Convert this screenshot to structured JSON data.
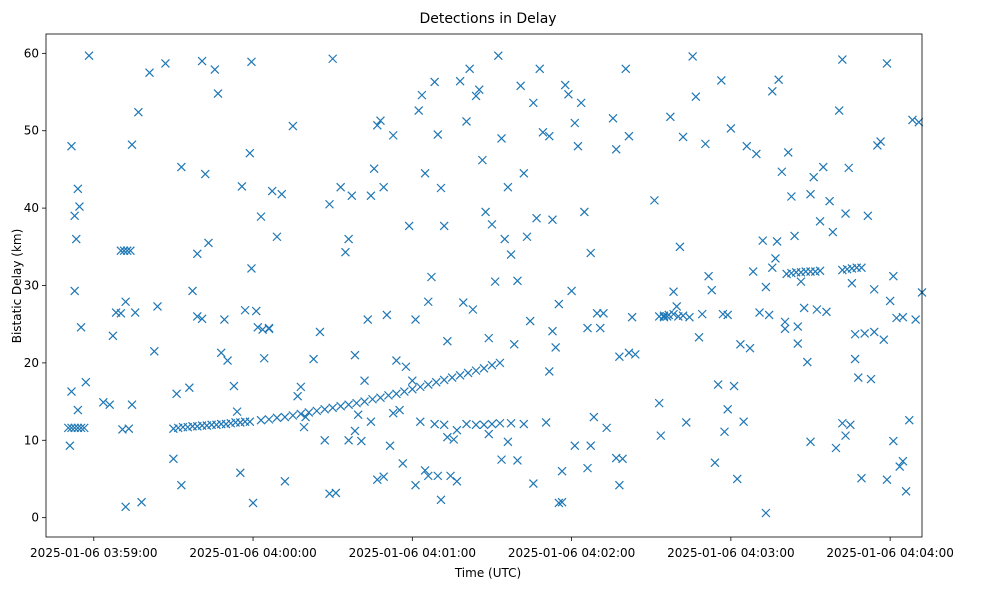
{
  "chart_data": {
    "type": "scatter",
    "title": "Detections in Delay",
    "xlabel": "Time (UTC)",
    "ylabel": "Bistatic Delay (km)",
    "marker": "x",
    "color": "#1f77b4",
    "xlim": [
      -0.3,
      5.2
    ],
    "ylim": [
      -2.5,
      62.5
    ],
    "x_unit": "minutes after 2025-01-06 03:59:00",
    "x_ticks": [
      {
        "value": 0,
        "label": "2025-01-06 03:59:00"
      },
      {
        "value": 1,
        "label": "2025-01-06 04:00:00"
      },
      {
        "value": 2,
        "label": "2025-01-06 04:01:00"
      },
      {
        "value": 3,
        "label": "2025-01-06 04:02:00"
      },
      {
        "value": 4,
        "label": "2025-01-06 04:03:00"
      },
      {
        "value": 5,
        "label": "2025-01-06 04:04:00"
      }
    ],
    "y_ticks": [
      {
        "value": 0,
        "label": "0"
      },
      {
        "value": 10,
        "label": "10"
      },
      {
        "value": 20,
        "label": "20"
      },
      {
        "value": 30,
        "label": "30"
      },
      {
        "value": 40,
        "label": "40"
      },
      {
        "value": 50,
        "label": "50"
      },
      {
        "value": 60,
        "label": "60"
      }
    ],
    "points": [
      [
        -0.16,
        11.6
      ],
      [
        -0.14,
        11.6
      ],
      [
        -0.12,
        11.6
      ],
      [
        -0.1,
        11.6
      ],
      [
        -0.08,
        11.6
      ],
      [
        -0.06,
        11.6
      ],
      [
        0.17,
        34.5
      ],
      [
        0.19,
        34.5
      ],
      [
        0.21,
        34.5
      ],
      [
        0.23,
        34.5
      ],
      [
        0.5,
        11.5
      ],
      [
        0.53,
        11.6
      ],
      [
        0.56,
        11.7
      ],
      [
        0.59,
        11.7
      ],
      [
        0.62,
        11.8
      ],
      [
        0.65,
        11.8
      ],
      [
        0.68,
        11.9
      ],
      [
        0.71,
        11.9
      ],
      [
        0.74,
        12.0
      ],
      [
        0.77,
        12.0
      ],
      [
        0.8,
        12.1
      ],
      [
        0.83,
        12.1
      ],
      [
        0.86,
        12.2
      ],
      [
        0.89,
        12.3
      ],
      [
        0.92,
        12.3
      ],
      [
        0.95,
        12.4
      ],
      [
        0.98,
        12.4
      ],
      [
        1.05,
        12.6
      ],
      [
        1.1,
        12.7
      ],
      [
        1.15,
        12.9
      ],
      [
        1.2,
        13.0
      ],
      [
        1.25,
        13.2
      ],
      [
        1.3,
        13.4
      ],
      [
        1.35,
        13.6
      ],
      [
        1.4,
        13.8
      ],
      [
        1.45,
        14.0
      ],
      [
        1.5,
        14.2
      ],
      [
        1.55,
        14.4
      ],
      [
        1.6,
        14.6
      ],
      [
        1.65,
        14.8
      ],
      [
        1.7,
        15.0
      ],
      [
        1.75,
        15.3
      ],
      [
        1.8,
        15.5
      ],
      [
        1.85,
        15.8
      ],
      [
        1.9,
        16.0
      ],
      [
        1.95,
        16.3
      ],
      [
        2.0,
        16.6
      ],
      [
        2.05,
        16.9
      ],
      [
        2.1,
        17.2
      ],
      [
        2.15,
        17.5
      ],
      [
        2.2,
        17.8
      ],
      [
        2.25,
        18.1
      ],
      [
        2.3,
        18.4
      ],
      [
        2.35,
        18.7
      ],
      [
        2.4,
        19.0
      ],
      [
        2.45,
        19.3
      ],
      [
        2.5,
        19.7
      ],
      [
        2.55,
        20.0
      ],
      [
        2.4,
        12.0
      ],
      [
        2.45,
        12.0
      ],
      [
        2.5,
        12.1
      ],
      [
        2.55,
        12.2
      ],
      [
        4.35,
        31.5
      ],
      [
        4.38,
        31.6
      ],
      [
        4.41,
        31.7
      ],
      [
        4.44,
        31.7
      ],
      [
        4.47,
        31.8
      ],
      [
        4.5,
        31.8
      ],
      [
        4.53,
        31.8
      ],
      [
        4.56,
        31.9
      ],
      [
        4.7,
        32.0
      ],
      [
        4.73,
        32.1
      ],
      [
        4.76,
        32.2
      ],
      [
        4.79,
        32.3
      ],
      [
        4.82,
        32.3
      ],
      [
        3.55,
        26.0
      ],
      [
        3.58,
        26.1
      ],
      [
        3.61,
        26.2
      ],
      [
        3.64,
        26.3
      ],
      [
        3.67,
        26.0
      ],
      [
        3.7,
        26.1
      ],
      [
        3.95,
        26.3
      ],
      [
        3.98,
        26.2
      ],
      [
        -0.14,
        48.0
      ],
      [
        -0.12,
        39.0
      ],
      [
        -0.1,
        42.5
      ],
      [
        -0.09,
        40.2
      ],
      [
        -0.11,
        36.0
      ],
      [
        -0.12,
        29.3
      ],
      [
        -0.08,
        24.6
      ],
      [
        -0.14,
        16.3
      ],
      [
        -0.15,
        9.3
      ],
      [
        -0.1,
        13.9
      ],
      [
        -0.05,
        17.5
      ],
      [
        -0.03,
        59.7
      ],
      [
        0.06,
        14.9
      ],
      [
        0.1,
        14.6
      ],
      [
        0.12,
        23.5
      ],
      [
        0.14,
        26.5
      ],
      [
        0.17,
        26.4
      ],
      [
        0.2,
        27.9
      ],
      [
        0.22,
        11.5
      ],
      [
        0.24,
        48.2
      ],
      [
        0.26,
        26.5
      ],
      [
        0.28,
        52.4
      ],
      [
        0.3,
        2.0
      ],
      [
        0.2,
        1.4
      ],
      [
        0.24,
        14.6
      ],
      [
        0.18,
        11.4
      ],
      [
        0.35,
        57.5
      ],
      [
        0.38,
        21.5
      ],
      [
        0.4,
        27.3
      ],
      [
        0.45,
        58.7
      ],
      [
        0.5,
        7.6
      ],
      [
        0.52,
        16.0
      ],
      [
        0.55,
        4.2
      ],
      [
        0.55,
        45.3
      ],
      [
        0.6,
        16.8
      ],
      [
        0.62,
        29.3
      ],
      [
        0.65,
        34.1
      ],
      [
        0.68,
        59.0
      ],
      [
        0.7,
        44.4
      ],
      [
        0.72,
        35.5
      ],
      [
        0.76,
        57.9
      ],
      [
        0.78,
        54.8
      ],
      [
        0.8,
        21.3
      ],
      [
        0.82,
        25.6
      ],
      [
        0.84,
        20.3
      ],
      [
        0.88,
        17.0
      ],
      [
        0.9,
        13.7
      ],
      [
        0.92,
        5.8
      ],
      [
        0.93,
        42.8
      ],
      [
        0.95,
        26.8
      ],
      [
        0.98,
        47.1
      ],
      [
        0.99,
        32.2
      ],
      [
        1.0,
        1.9
      ],
      [
        1.02,
        26.7
      ],
      [
        1.05,
        38.9
      ],
      [
        1.07,
        20.6
      ],
      [
        1.1,
        24.5
      ],
      [
        1.12,
        42.2
      ],
      [
        1.15,
        36.3
      ],
      [
        1.18,
        41.8
      ],
      [
        0.65,
        26.0
      ],
      [
        0.68,
        25.7
      ],
      [
        0.99,
        58.9
      ],
      [
        1.03,
        24.6
      ],
      [
        1.06,
        24.3
      ],
      [
        1.1,
        24.4
      ],
      [
        1.25,
        50.6
      ],
      [
        1.28,
        15.7
      ],
      [
        1.3,
        16.9
      ],
      [
        1.33,
        13.0
      ],
      [
        1.38,
        20.5
      ],
      [
        1.42,
        24.0
      ],
      [
        1.48,
        40.5
      ],
      [
        1.5,
        59.3
      ],
      [
        1.52,
        3.2
      ],
      [
        1.55,
        42.7
      ],
      [
        1.58,
        34.3
      ],
      [
        1.6,
        36.0
      ],
      [
        1.62,
        41.6
      ],
      [
        1.64,
        21.0
      ],
      [
        1.66,
        13.3
      ],
      [
        1.68,
        9.9
      ],
      [
        1.7,
        17.7
      ],
      [
        1.72,
        25.6
      ],
      [
        1.74,
        41.6
      ],
      [
        1.76,
        45.1
      ],
      [
        1.78,
        50.7
      ],
      [
        1.8,
        51.3
      ],
      [
        1.82,
        42.7
      ],
      [
        1.84,
        26.2
      ],
      [
        1.86,
        9.3
      ],
      [
        1.88,
        49.4
      ],
      [
        1.9,
        20.3
      ],
      [
        1.92,
        13.9
      ],
      [
        1.94,
        7.0
      ],
      [
        1.96,
        19.5
      ],
      [
        1.98,
        37.7
      ],
      [
        2.0,
        17.7
      ],
      [
        2.02,
        25.6
      ],
      [
        2.04,
        52.6
      ],
      [
        2.06,
        54.6
      ],
      [
        2.08,
        44.5
      ],
      [
        2.1,
        27.9
      ],
      [
        2.12,
        31.1
      ],
      [
        2.14,
        56.3
      ],
      [
        2.16,
        49.5
      ],
      [
        2.18,
        42.6
      ],
      [
        2.2,
        37.7
      ],
      [
        2.22,
        22.8
      ],
      [
        2.24,
        5.4
      ],
      [
        2.26,
        10.1
      ],
      [
        2.28,
        11.3
      ],
      [
        2.3,
        56.4
      ],
      [
        2.32,
        27.8
      ],
      [
        2.34,
        51.2
      ],
      [
        2.36,
        58.0
      ],
      [
        2.38,
        26.9
      ],
      [
        2.4,
        54.5
      ],
      [
        2.42,
        55.3
      ],
      [
        2.44,
        46.2
      ],
      [
        2.46,
        39.5
      ],
      [
        2.48,
        23.2
      ],
      [
        2.5,
        37.9
      ],
      [
        2.52,
        30.5
      ],
      [
        2.54,
        59.7
      ],
      [
        2.56,
        49.0
      ],
      [
        2.58,
        36.0
      ],
      [
        2.6,
        42.7
      ],
      [
        2.62,
        34.0
      ],
      [
        2.64,
        22.4
      ],
      [
        2.66,
        30.6
      ],
      [
        2.68,
        55.8
      ],
      [
        2.7,
        44.5
      ],
      [
        2.72,
        36.3
      ],
      [
        2.74,
        25.4
      ],
      [
        2.76,
        53.6
      ],
      [
        2.78,
        38.7
      ],
      [
        2.8,
        58.0
      ],
      [
        2.82,
        49.8
      ],
      [
        2.84,
        12.3
      ],
      [
        2.86,
        49.3
      ],
      [
        2.88,
        38.5
      ],
      [
        2.9,
        22.0
      ],
      [
        2.92,
        27.6
      ],
      [
        2.94,
        2.0
      ],
      [
        2.96,
        55.9
      ],
      [
        2.98,
        54.7
      ],
      [
        3.0,
        29.3
      ],
      [
        3.02,
        51.0
      ],
      [
        3.04,
        48.0
      ],
      [
        3.06,
        53.6
      ],
      [
        3.08,
        39.5
      ],
      [
        3.1,
        24.5
      ],
      [
        3.12,
        34.2
      ],
      [
        3.14,
        13.0
      ],
      [
        3.16,
        26.4
      ],
      [
        3.18,
        24.5
      ],
      [
        3.22,
        11.6
      ],
      [
        3.26,
        51.6
      ],
      [
        3.28,
        47.6
      ],
      [
        3.3,
        20.8
      ],
      [
        3.32,
        7.6
      ],
      [
        3.34,
        58.0
      ],
      [
        3.36,
        49.3
      ],
      [
        3.38,
        25.9
      ],
      [
        3.4,
        21.1
      ],
      [
        1.2,
        4.7
      ],
      [
        1.32,
        11.7
      ],
      [
        1.45,
        10.0
      ],
      [
        1.48,
        3.1
      ],
      [
        1.6,
        10.0
      ],
      [
        1.64,
        11.2
      ],
      [
        1.74,
        12.4
      ],
      [
        1.78,
        4.9
      ],
      [
        1.82,
        5.3
      ],
      [
        1.88,
        13.5
      ],
      [
        2.02,
        4.2
      ],
      [
        2.05,
        12.4
      ],
      [
        2.08,
        6.1
      ],
      [
        2.1,
        5.4
      ],
      [
        2.14,
        12.1
      ],
      [
        2.16,
        5.4
      ],
      [
        2.18,
        2.3
      ],
      [
        2.2,
        12.0
      ],
      [
        2.22,
        10.4
      ],
      [
        2.28,
        4.7
      ],
      [
        2.34,
        12.1
      ],
      [
        2.48,
        10.8
      ],
      [
        2.56,
        7.5
      ],
      [
        2.6,
        9.8
      ],
      [
        2.62,
        12.2
      ],
      [
        2.66,
        7.4
      ],
      [
        2.7,
        12.1
      ],
      [
        2.76,
        4.4
      ],
      [
        2.86,
        18.9
      ],
      [
        2.88,
        24.1
      ],
      [
        2.92,
        1.9
      ],
      [
        2.94,
        6.0
      ],
      [
        3.02,
        9.3
      ],
      [
        3.1,
        6.4
      ],
      [
        3.12,
        9.3
      ],
      [
        3.2,
        26.4
      ],
      [
        3.28,
        7.7
      ],
      [
        3.3,
        4.2
      ],
      [
        3.36,
        21.3
      ],
      [
        3.52,
        41.0
      ],
      [
        3.55,
        14.8
      ],
      [
        3.56,
        10.6
      ],
      [
        3.58,
        25.9
      ],
      [
        3.6,
        26.0
      ],
      [
        3.62,
        51.8
      ],
      [
        3.64,
        29.2
      ],
      [
        3.66,
        27.3
      ],
      [
        3.68,
        35.0
      ],
      [
        3.7,
        49.2
      ],
      [
        3.72,
        12.3
      ],
      [
        3.74,
        25.9
      ],
      [
        3.76,
        59.6
      ],
      [
        3.78,
        54.4
      ],
      [
        3.8,
        23.3
      ],
      [
        3.82,
        26.3
      ],
      [
        3.84,
        48.3
      ],
      [
        3.86,
        31.2
      ],
      [
        3.88,
        29.4
      ],
      [
        3.9,
        7.1
      ],
      [
        3.92,
        17.2
      ],
      [
        3.94,
        56.5
      ],
      [
        3.96,
        11.1
      ],
      [
        3.98,
        14.0
      ],
      [
        4.0,
        50.3
      ],
      [
        4.02,
        17.0
      ],
      [
        4.04,
        5.0
      ],
      [
        4.06,
        22.4
      ],
      [
        4.08,
        12.4
      ],
      [
        4.1,
        48.0
      ],
      [
        4.12,
        21.9
      ],
      [
        4.14,
        31.8
      ],
      [
        4.16,
        47.0
      ],
      [
        4.18,
        26.5
      ],
      [
        4.2,
        35.8
      ],
      [
        4.22,
        0.6
      ],
      [
        4.24,
        26.2
      ],
      [
        4.26,
        55.1
      ],
      [
        4.28,
        33.5
      ],
      [
        4.3,
        56.6
      ],
      [
        4.32,
        44.7
      ],
      [
        4.34,
        24.4
      ],
      [
        4.36,
        47.2
      ],
      [
        4.38,
        41.5
      ],
      [
        4.4,
        36.4
      ],
      [
        4.42,
        22.5
      ],
      [
        4.44,
        30.5
      ],
      [
        4.46,
        27.1
      ],
      [
        4.48,
        20.1
      ],
      [
        4.5,
        9.8
      ],
      [
        4.52,
        44.0
      ],
      [
        4.54,
        26.9
      ],
      [
        4.56,
        38.3
      ],
      [
        4.58,
        45.3
      ],
      [
        4.6,
        26.6
      ],
      [
        4.62,
        40.9
      ],
      [
        4.64,
        36.9
      ],
      [
        4.66,
        9.0
      ],
      [
        4.68,
        52.6
      ],
      [
        4.7,
        59.2
      ],
      [
        4.72,
        39.3
      ],
      [
        4.74,
        45.2
      ],
      [
        4.76,
        30.3
      ],
      [
        4.78,
        20.5
      ],
      [
        4.8,
        18.1
      ],
      [
        4.82,
        5.1
      ],
      [
        4.84,
        23.8
      ],
      [
        4.86,
        39.0
      ],
      [
        4.88,
        17.9
      ],
      [
        4.9,
        29.5
      ],
      [
        4.92,
        48.1
      ],
      [
        4.94,
        48.6
      ],
      [
        4.96,
        23.0
      ],
      [
        4.98,
        58.7
      ],
      [
        5.0,
        28.0
      ],
      [
        5.02,
        31.2
      ],
      [
        5.04,
        25.8
      ],
      [
        5.06,
        6.6
      ],
      [
        5.08,
        25.9
      ],
      [
        5.1,
        3.4
      ],
      [
        5.12,
        12.6
      ],
      [
        5.14,
        51.4
      ],
      [
        5.16,
        25.6
      ],
      [
        5.18,
        51.1
      ],
      [
        5.2,
        29.1
      ],
      [
        4.22,
        29.8
      ],
      [
        4.26,
        32.3
      ],
      [
        4.29,
        35.7
      ],
      [
        4.34,
        25.3
      ],
      [
        4.42,
        24.7
      ],
      [
        4.5,
        41.8
      ],
      [
        4.7,
        12.2
      ],
      [
        4.72,
        10.6
      ],
      [
        4.75,
        12.0
      ],
      [
        4.78,
        23.7
      ],
      [
        4.9,
        24.0
      ],
      [
        4.98,
        4.9
      ],
      [
        5.02,
        9.9
      ],
      [
        5.08,
        7.3
      ]
    ]
  }
}
